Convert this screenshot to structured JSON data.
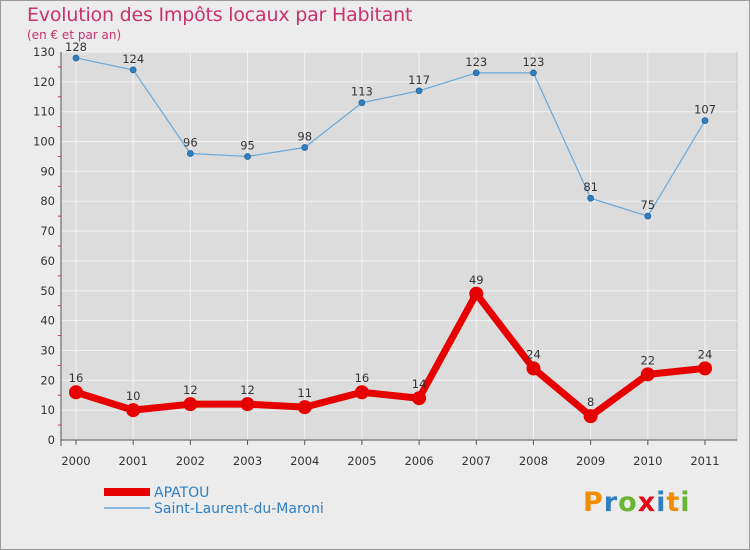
{
  "header": {
    "title": "Evolution des Impôts locaux par Habitant",
    "subtitle": "(en € et par an)"
  },
  "chart_data": {
    "type": "line",
    "title": "Evolution des Impôts locaux par Habitant",
    "subtitle": "(en € et par an)",
    "xlabel": "",
    "ylabel": "",
    "categories": [
      "2000",
      "2001",
      "2002",
      "2003",
      "2004",
      "2005",
      "2006",
      "2007",
      "2008",
      "2009",
      "2010",
      "2011"
    ],
    "ylim": [
      0,
      130
    ],
    "yticks": [
      0,
      10,
      20,
      30,
      40,
      50,
      60,
      70,
      80,
      90,
      100,
      110,
      120,
      130
    ],
    "grid": true,
    "legend_position": "bottom-left",
    "series": [
      {
        "name": "APATOU",
        "color": "#e60000",
        "values": [
          16,
          10,
          12,
          12,
          11,
          16,
          14,
          49,
          24,
          8,
          22,
          24
        ]
      },
      {
        "name": "Saint-Laurent-du-Maroni",
        "color": "#6aa8d8",
        "marker_color": "#2f7fc1",
        "values": [
          128,
          124,
          96,
          95,
          98,
          113,
          117,
          123,
          123,
          81,
          75,
          107
        ]
      }
    ]
  },
  "logo": {
    "text": "Proxiti",
    "letters": [
      "P",
      "r",
      "o",
      "x",
      "i",
      "t",
      "i"
    ],
    "colors": [
      "#f28c00",
      "#2f7fc1",
      "#6bb536",
      "#e30613",
      "#2f7fc1",
      "#f28c00",
      "#6bb536"
    ]
  }
}
